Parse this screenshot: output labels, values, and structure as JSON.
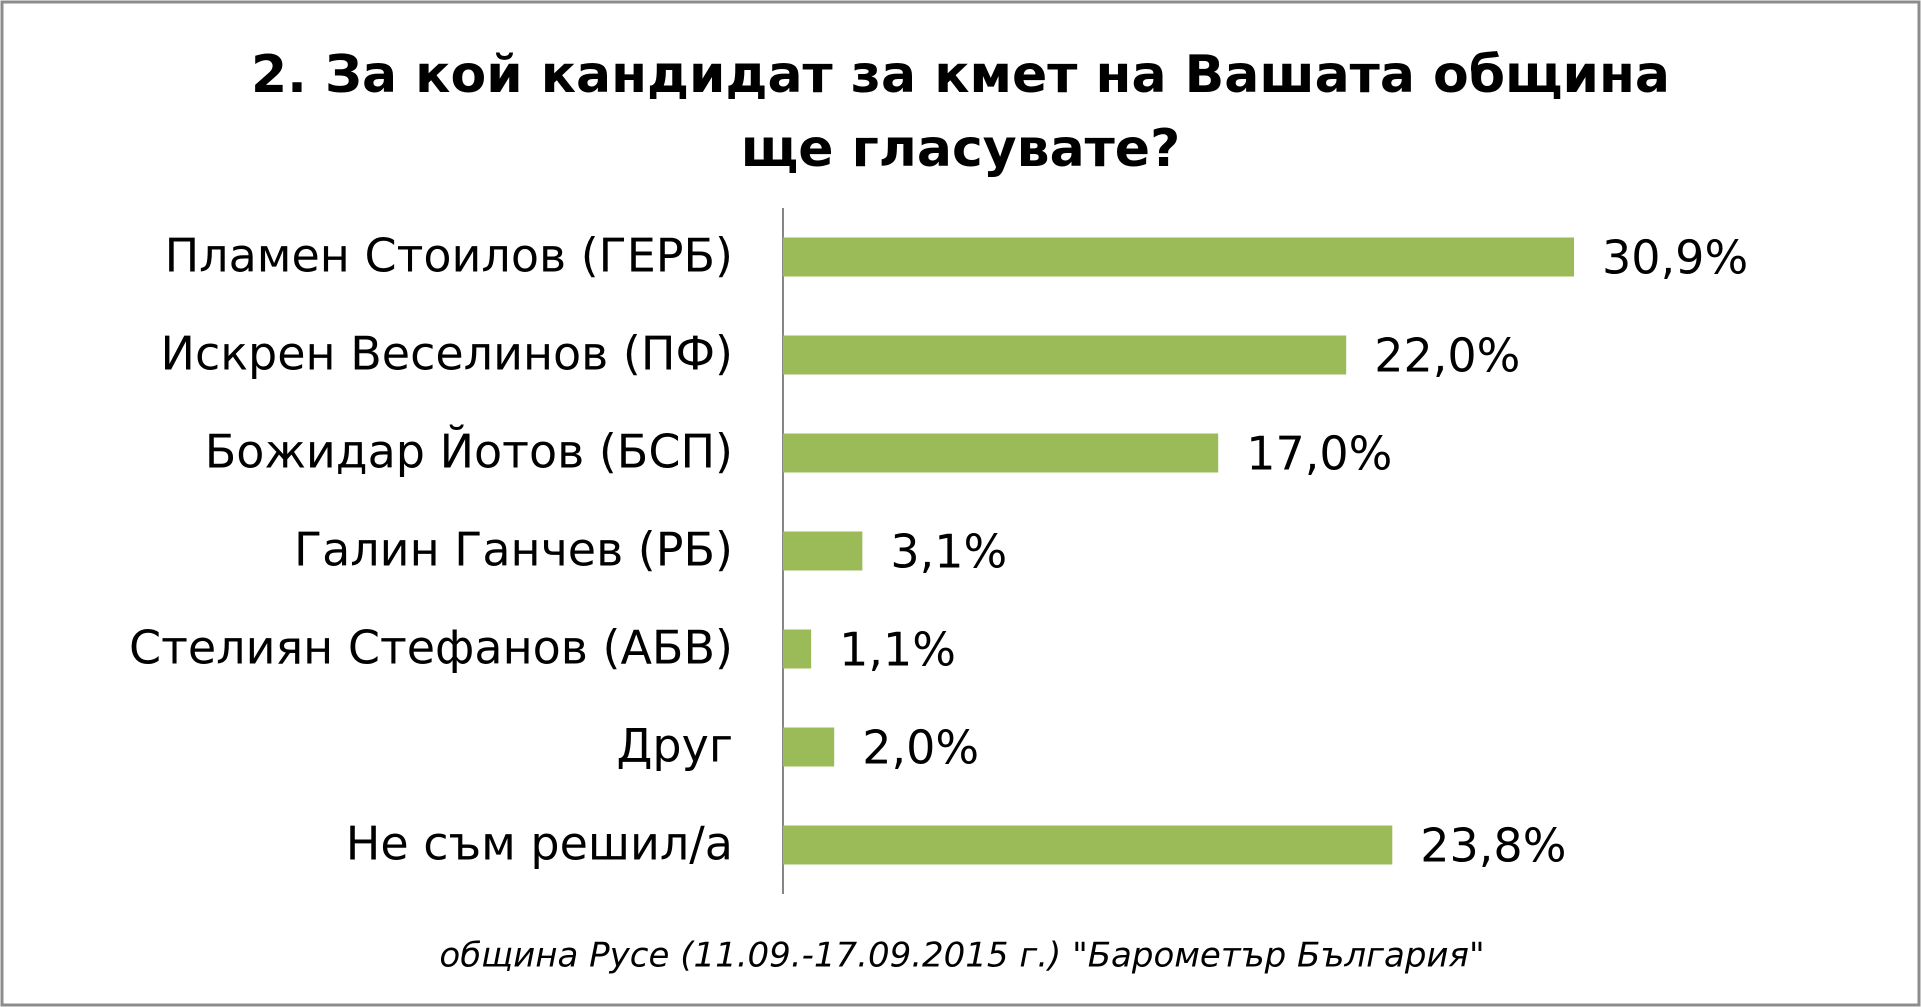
{
  "chart_data": {
    "type": "bar",
    "orientation": "horizontal",
    "title": "2. За кой кандидат за кмет на Вашата община ще гласувате?",
    "categories": [
      "Пламен Стоилов (ГЕРБ)",
      "Искрен Веселинов (ПФ)",
      "Божидар Йотов (БСП)",
      "Галин Ганчев (РБ)",
      "Стелиян Стефанов (АБВ)",
      "Друг",
      "Не съм решил/а"
    ],
    "values": [
      30.9,
      22.0,
      17.0,
      3.1,
      1.1,
      2.0,
      23.8
    ],
    "value_labels": [
      "30,9%",
      "22,0%",
      "17,0%",
      "3,1%",
      "1,1%",
      "2,0%",
      "23,8%"
    ],
    "color": "#9bbb59",
    "footnote": "община Русе (11.09.-17.09.2015 г.) \"Барометър България\""
  }
}
